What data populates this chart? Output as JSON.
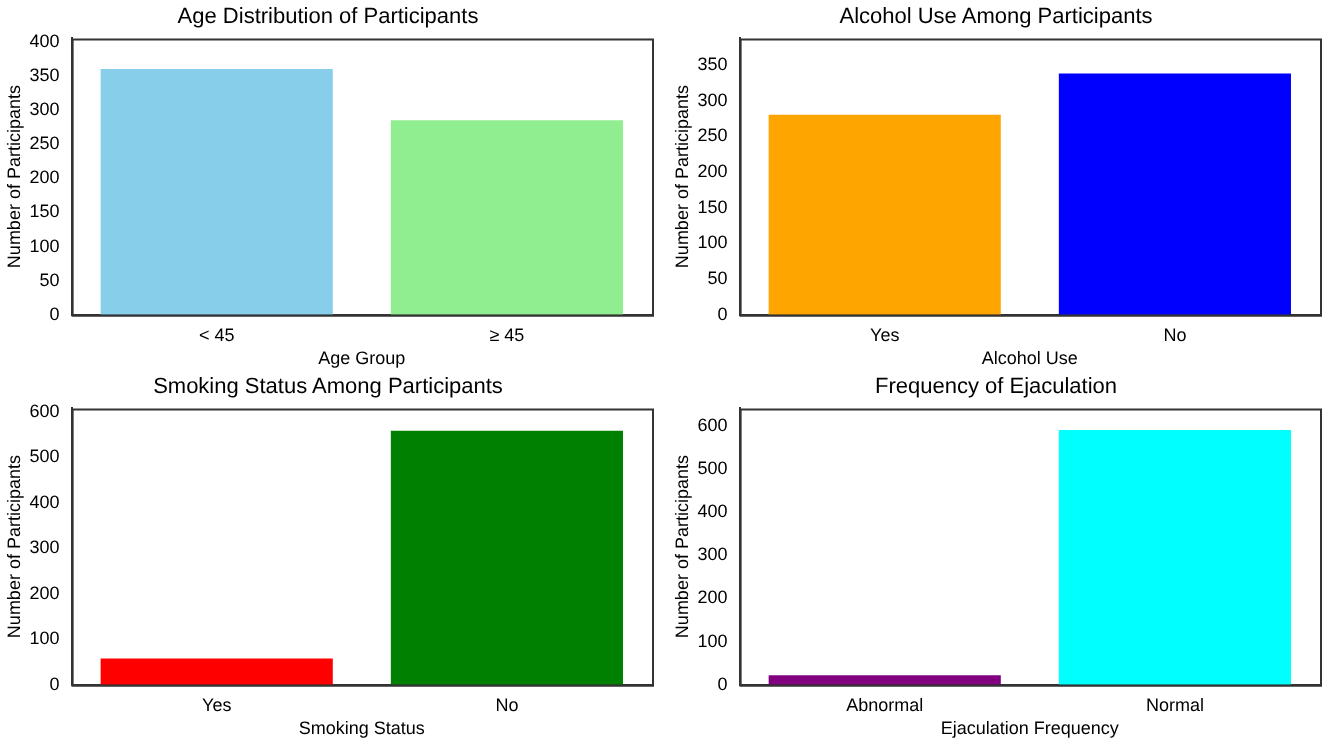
{
  "chart_data": [
    {
      "type": "bar",
      "title": "Age Distribution of Participants",
      "xlabel": "Age Group",
      "ylabel": "Number of Participants",
      "categories": [
        "< 45",
        "≥ 45"
      ],
      "values": [
        360,
        285
      ],
      "colors": [
        "#87ceeb",
        "#90ee90"
      ],
      "ylim": [
        0,
        405
      ],
      "yticks": [
        0,
        50,
        100,
        150,
        200,
        250,
        300,
        350,
        400
      ],
      "grid": false
    },
    {
      "type": "bar",
      "title": "Alcohol Use Among Participants",
      "xlabel": "Alcohol Use",
      "ylabel": "Number of Participants",
      "categories": [
        "Yes",
        "No"
      ],
      "values": [
        280,
        338
      ],
      "colors": [
        "#ffa500",
        "#0000ff"
      ],
      "ylim": [
        0,
        387
      ],
      "yticks": [
        0,
        50,
        100,
        150,
        200,
        250,
        300,
        350
      ],
      "grid": false
    },
    {
      "type": "bar",
      "title": "Smoking Status Among Participants",
      "xlabel": "Smoking Status",
      "ylabel": "Number of Participants",
      "categories": [
        "Yes",
        "No"
      ],
      "values": [
        58,
        558
      ],
      "colors": [
        "#ff0000",
        "#008000"
      ],
      "ylim": [
        0,
        607
      ],
      "yticks": [
        0,
        100,
        200,
        300,
        400,
        500,
        600
      ],
      "grid": false
    },
    {
      "type": "bar",
      "title": "Frequency of Ejaculation",
      "xlabel": "Ejaculation Frequency",
      "ylabel": "Number of Participants",
      "categories": [
        "Abnormal",
        "Normal"
      ],
      "values": [
        22,
        590
      ],
      "colors": [
        "#800080",
        "#00ffff"
      ],
      "ylim": [
        0,
        640
      ],
      "yticks": [
        0,
        100,
        200,
        300,
        400,
        500,
        600
      ],
      "grid": false
    }
  ]
}
